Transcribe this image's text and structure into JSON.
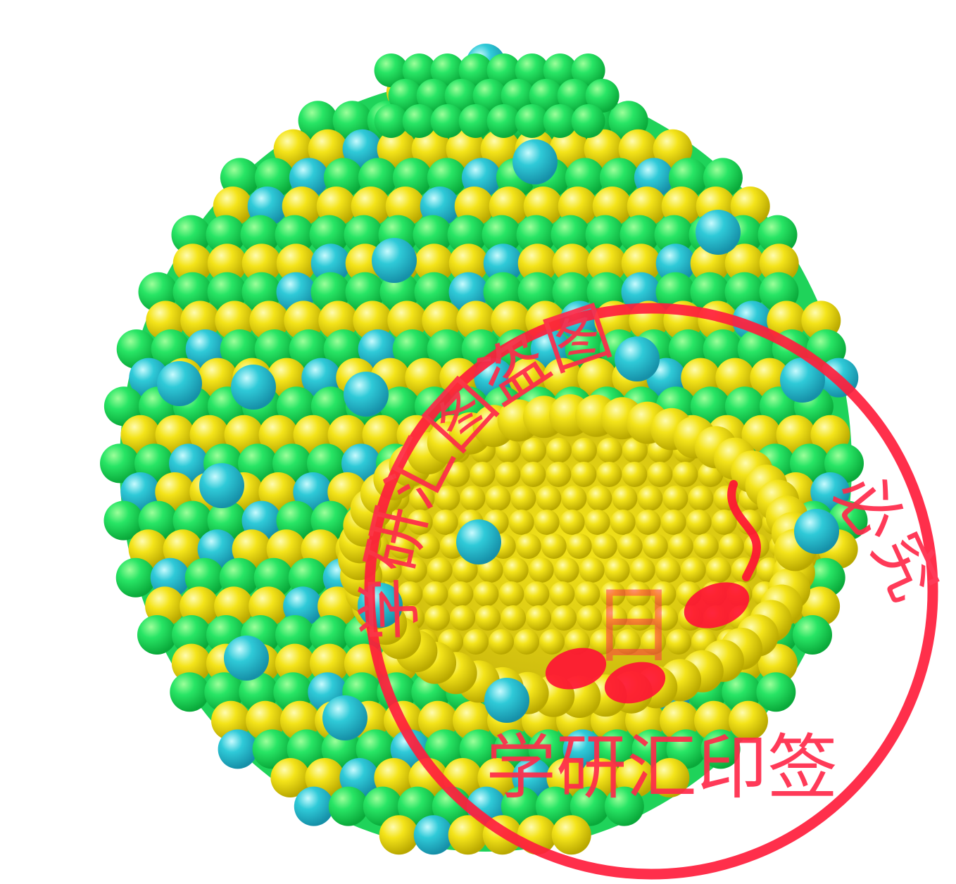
{
  "figure": {
    "subject": "nanoparticle-cluster-render",
    "colors": {
      "green_atom": "#1fe060",
      "yellow_atom": "#f2e21a",
      "cyan_atom": "#27c9d6",
      "background": "#ffffff",
      "stamp_red": "#ff1e3c"
    }
  },
  "watermark": {
    "arc_text_1": "学研汇图盗图",
    "arc_text_2": "必究",
    "bottom_text": "学研汇印签",
    "center_glyph": "日"
  }
}
